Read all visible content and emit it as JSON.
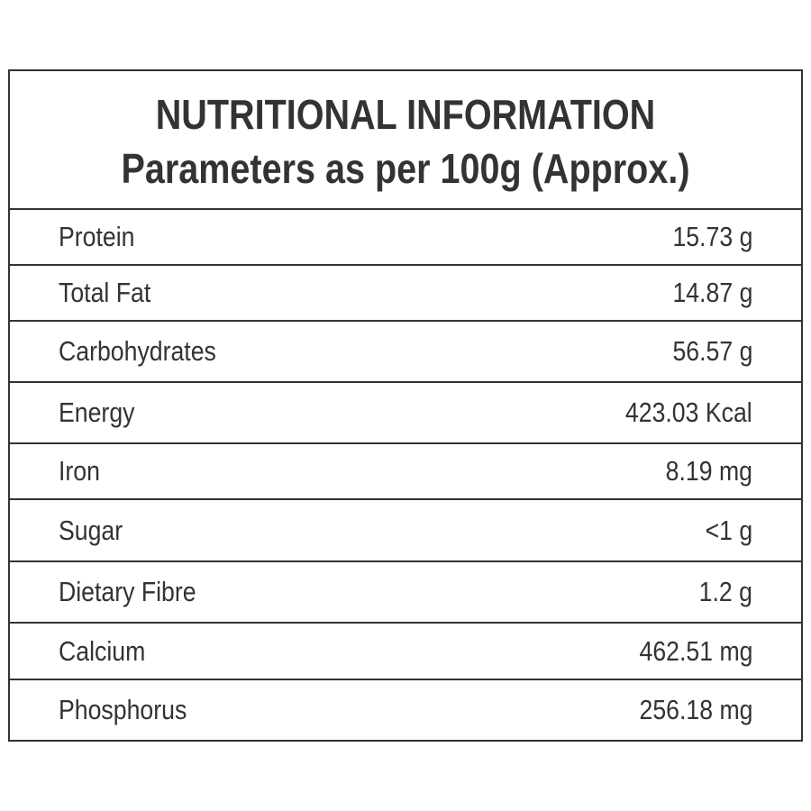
{
  "title": "NUTRITIONAL INFORMATION",
  "subtitle": "Parameters as per 100g (Approx.)",
  "rows": [
    {
      "label": "Protein",
      "value": "15.73 g"
    },
    {
      "label": "Total Fat",
      "value": "14.87 g"
    },
    {
      "label": "Carbohydrates",
      "value": "56.57 g"
    },
    {
      "label": "Energy",
      "value": "423.03 Kcal"
    },
    {
      "label": "Iron",
      "value": "8.19 mg"
    },
    {
      "label": "Sugar",
      "value": "<1 g"
    },
    {
      "label": "Dietary Fibre",
      "value": "1.2 g"
    },
    {
      "label": "Calcium",
      "value": "462.51 mg"
    },
    {
      "label": "Phosphorus",
      "value": "256.18 mg"
    }
  ]
}
